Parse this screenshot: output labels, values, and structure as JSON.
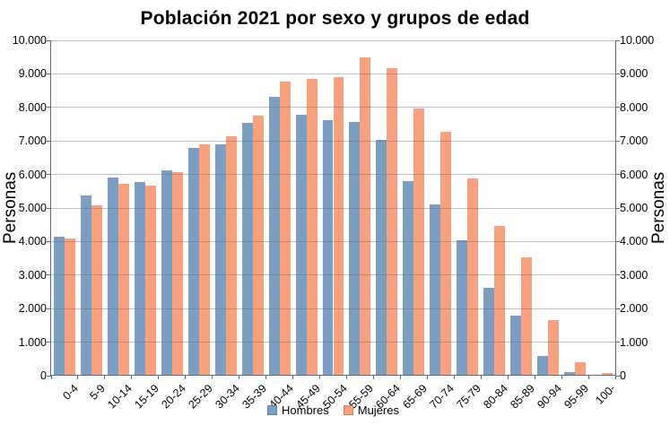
{
  "title": "Población 2021 por sexo y grupos de edad",
  "axes": {
    "y_left_title": "Personas",
    "y_right_title": "Personas",
    "y_ticks": [
      "10.000",
      "9.000",
      "8.000",
      "7.000",
      "6.000",
      "5.000",
      "4.000",
      "3.000",
      "2.000",
      "1.000",
      "0"
    ]
  },
  "legend": {
    "items": [
      {
        "label": "Hombres",
        "color": "#7d9ec3"
      },
      {
        "label": "Mujeres",
        "color": "#f9a17e"
      }
    ]
  },
  "chart_data": {
    "type": "bar",
    "title": "Población 2021 por sexo y grupos de edad",
    "categories": [
      "0-4",
      "5-9",
      "10-14",
      "15-19",
      "20-24",
      "25-29",
      "30-34",
      "35-39",
      "40-44",
      "45-49",
      "50-54",
      "55-59",
      "60-64",
      "65-69",
      "70-74",
      "75-79",
      "80-84",
      "85-89",
      "90-94",
      "95-99",
      "100-"
    ],
    "series": [
      {
        "name": "Hombres",
        "color": "#7d9ec3",
        "values": [
          4140,
          5380,
          5910,
          5780,
          6120,
          6800,
          6900,
          7530,
          8320,
          7770,
          7630,
          7570,
          7040,
          5800,
          5120,
          4040,
          2610,
          1800,
          600,
          120,
          30
        ]
      },
      {
        "name": "Mujeres",
        "color": "#f9a17e",
        "values": [
          4090,
          5070,
          5710,
          5660,
          6080,
          6910,
          7140,
          7760,
          8780,
          8860,
          8900,
          9490,
          9180,
          7960,
          7260,
          5880,
          4460,
          3540,
          1650,
          410,
          70
        ]
      }
    ],
    "xlabel": "",
    "ylabel": "Personas",
    "ylabel_right": "Personas",
    "ylim": [
      0,
      10000
    ],
    "ytick_step": 1000,
    "grid": true,
    "legend_position": "bottom"
  }
}
